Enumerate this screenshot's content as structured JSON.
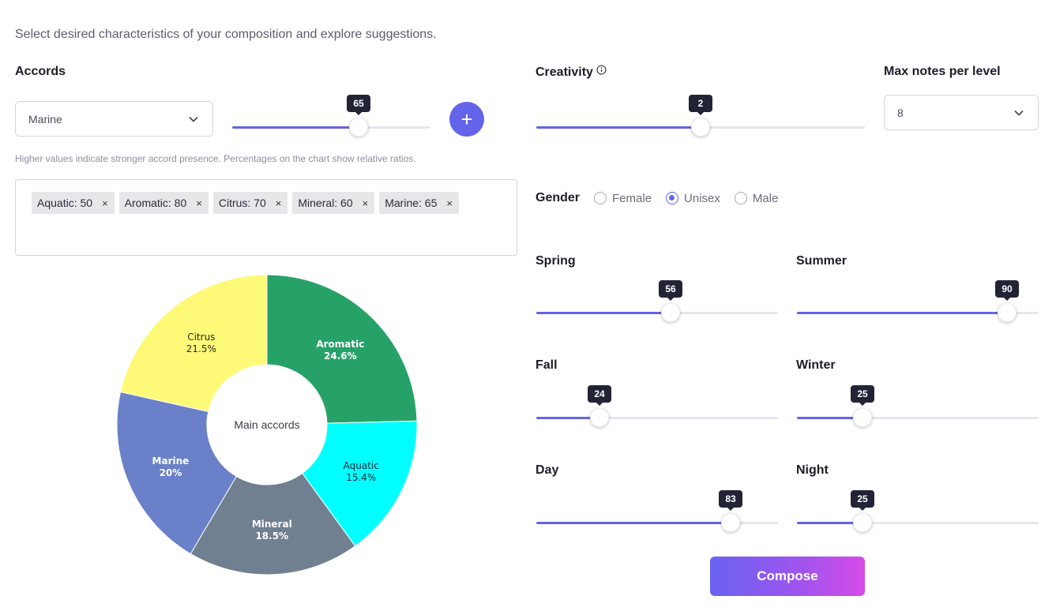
{
  "intro": "Select desired characteristics of your composition and explore suggestions.",
  "accords": {
    "label": "Accords",
    "selected": "Marine",
    "slider_value": 65,
    "add_label": "+",
    "hint": "Higher values indicate stronger accord presence. Percentages on the chart show relative ratios.",
    "tags": [
      {
        "text": "Aquatic: 50",
        "remove": "×"
      },
      {
        "text": "Aromatic: 80",
        "remove": "×"
      },
      {
        "text": "Citrus: 70",
        "remove": "×"
      },
      {
        "text": "Mineral: 60",
        "remove": "×"
      },
      {
        "text": "Marine: 65",
        "remove": "×"
      }
    ]
  },
  "chart_data": {
    "type": "pie",
    "center_label": "Main accords",
    "categories": [
      "Aromatic",
      "Aquatic",
      "Mineral",
      "Marine",
      "Citrus"
    ],
    "values": [
      24.6,
      15.4,
      18.5,
      20,
      21.5
    ],
    "value_labels": [
      "24.6%",
      "15.4%",
      "18.5%",
      "20%",
      "21.5%"
    ],
    "colors": [
      "#26a269",
      "#00ffff",
      "#708090",
      "#6a80c8",
      "#fefa78"
    ],
    "label_colors": [
      "#ffffff",
      "#1b2a3a",
      "#ffffff",
      "#ffffff",
      "#2a2a2a"
    ]
  },
  "creativity": {
    "label": "Creativity",
    "info_icon": "info-icon",
    "value": 2,
    "min": 0,
    "max": 4
  },
  "max_notes": {
    "label": "Max notes per level",
    "selected": "8"
  },
  "gender": {
    "label": "Gender",
    "options": [
      "Female",
      "Unisex",
      "Male"
    ],
    "selected": "Unisex"
  },
  "sliders": {
    "spring": {
      "label": "Spring",
      "value": 56
    },
    "summer": {
      "label": "Summer",
      "value": 90
    },
    "fall": {
      "label": "Fall",
      "value": 24
    },
    "winter": {
      "label": "Winter",
      "value": 25
    },
    "day": {
      "label": "Day",
      "value": 83
    },
    "night": {
      "label": "Night",
      "value": 25
    }
  },
  "compose_label": "Compose",
  "colors": {
    "accent": "#6464ea",
    "bubble": "#222436"
  }
}
